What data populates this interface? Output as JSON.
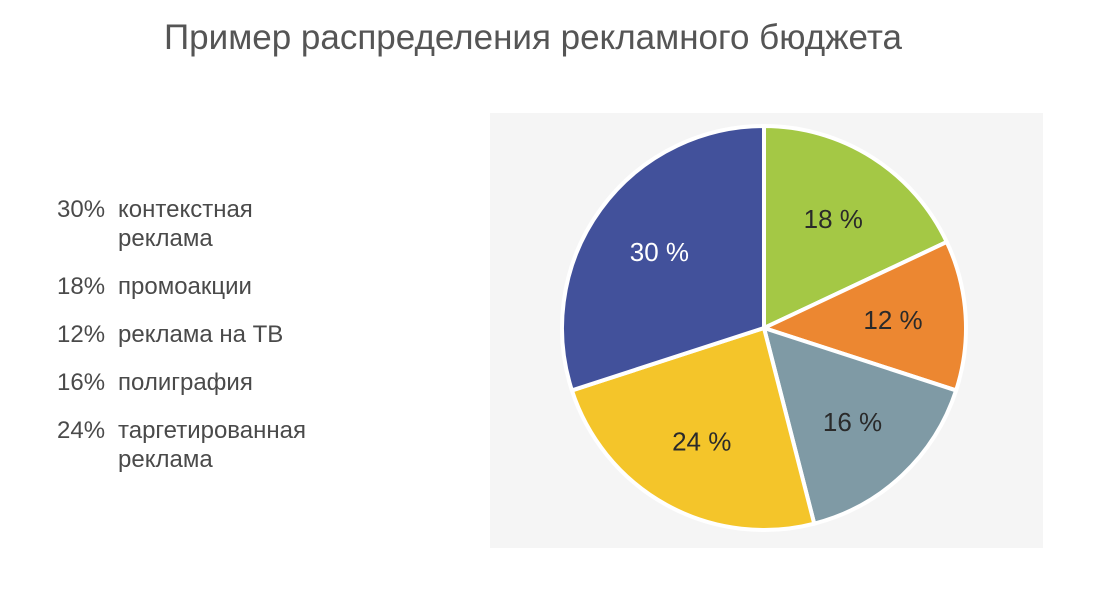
{
  "title": "Пример распределения рекламного бюджета",
  "legend": [
    {
      "pct": "30%",
      "text": "контекстная реклама"
    },
    {
      "pct": "18%",
      "text": "промоакции"
    },
    {
      "pct": "12%",
      "text": "реклама на ТВ"
    },
    {
      "pct": "16%",
      "text": "полиграфия"
    },
    {
      "pct": "24%",
      "text": "таргетированная реклама"
    }
  ],
  "chart_data": {
    "type": "pie",
    "title": "Пример распределения рекламного бюджета",
    "start": "top, clockwise",
    "slices": [
      {
        "label": "промоакции",
        "value": 18,
        "data_label": "18 %",
        "color": "#a4c845",
        "label_color": "#2a2a2a"
      },
      {
        "label": "реклама на ТВ",
        "value": 12,
        "data_label": "12 %",
        "color": "#ec8731",
        "label_color": "#2a2a2a"
      },
      {
        "label": "полиграфия",
        "value": 16,
        "data_label": "16 %",
        "color": "#7f9aa5",
        "label_color": "#2a2a2a"
      },
      {
        "label": "таргетированная реклама",
        "value": 24,
        "data_label": "24 %",
        "color": "#f4c52a",
        "label_color": "#2a2a2a"
      },
      {
        "label": "контекстная реклама",
        "value": 30,
        "data_label": "30 %",
        "color": "#42519b",
        "label_color": "#ffffff"
      }
    ]
  }
}
